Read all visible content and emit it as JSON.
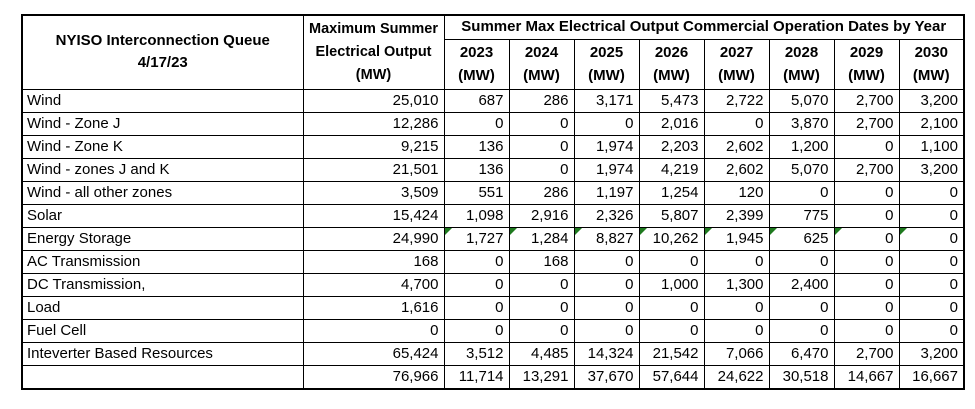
{
  "header": {
    "title_line1": "NYISO Interconnection Queue",
    "title_line2": "4/17/23",
    "max_col_line1": "Maximum Summer",
    "max_col_line2": "Electrical Output",
    "max_col_line3": "(MW)",
    "group_header": "Summer Max Electrical Output Commercial Operation Dates by Year",
    "unit": "(MW)",
    "years": [
      "2023",
      "2024",
      "2025",
      "2026",
      "2027",
      "2028",
      "2029",
      "2030"
    ]
  },
  "rows": [
    {
      "label": "Wind",
      "max": "25,010",
      "v": [
        "687",
        "286",
        "3,171",
        "5,473",
        "2,722",
        "5,070",
        "2,700",
        "3,200"
      ]
    },
    {
      "label": "Wind - Zone J",
      "max": "12,286",
      "v": [
        "0",
        "0",
        "0",
        "2,016",
        "0",
        "3,870",
        "2,700",
        "2,100"
      ]
    },
    {
      "label": "Wind - Zone K",
      "max": "9,215",
      "v": [
        "136",
        "0",
        "1,974",
        "2,203",
        "2,602",
        "1,200",
        "0",
        "1,100"
      ]
    },
    {
      "label": "Wind - zones J and K",
      "max": "21,501",
      "v": [
        "136",
        "0",
        "1,974",
        "4,219",
        "2,602",
        "5,070",
        "2,700",
        "3,200"
      ]
    },
    {
      "label": "Wind - all other zones",
      "max": "3,509",
      "v": [
        "551",
        "286",
        "1,197",
        "1,254",
        "120",
        "0",
        "0",
        "0"
      ]
    },
    {
      "label": "Solar",
      "max": "15,424",
      "v": [
        "1,098",
        "2,916",
        "2,326",
        "5,807",
        "2,399",
        "775",
        "0",
        "0"
      ]
    },
    {
      "label": "Energy Storage",
      "max": "24,990",
      "v": [
        "1,727",
        "1,284",
        "8,827",
        "10,262",
        "1,945",
        "625",
        "0",
        "0"
      ],
      "flags": [
        true,
        true,
        true,
        true,
        true,
        true,
        true,
        true
      ]
    },
    {
      "label": "AC Transmission",
      "max": "168",
      "v": [
        "0",
        "168",
        "0",
        "0",
        "0",
        "0",
        "0",
        "0"
      ]
    },
    {
      "label": "DC Transmission,",
      "max": "4,700",
      "v": [
        "0",
        "0",
        "0",
        "1,000",
        "1,300",
        "2,400",
        "0",
        "0"
      ]
    },
    {
      "label": "Load",
      "max": "1,616",
      "v": [
        "0",
        "0",
        "0",
        "0",
        "0",
        "0",
        "0",
        "0"
      ]
    },
    {
      "label": "Fuel Cell",
      "max": "0",
      "v": [
        "0",
        "0",
        "0",
        "0",
        "0",
        "0",
        "0",
        "0"
      ]
    },
    {
      "label": "Inteverter Based Resources",
      "max": "65,424",
      "v": [
        "3,512",
        "4,485",
        "14,324",
        "21,542",
        "7,066",
        "6,470",
        "2,700",
        "3,200"
      ]
    },
    {
      "label": "",
      "max": "76,966",
      "v": [
        "11,714",
        "13,291",
        "37,670",
        "57,644",
        "24,622",
        "30,518",
        "14,667",
        "16,667"
      ]
    }
  ],
  "colors": {
    "background": "#ffffff",
    "text": "#000000",
    "border": "#000000",
    "flag_green": "#1f7a1f"
  }
}
